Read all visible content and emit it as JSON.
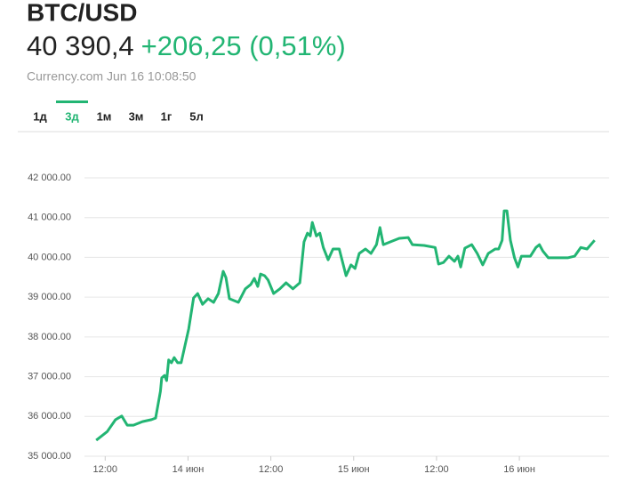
{
  "header": {
    "pair": "BTC/USD",
    "price": "40 390,4",
    "change": "+206,25 (0,51%)",
    "source": "Currency.com Jun 16 10:08:50",
    "tabs": [
      "1д",
      "3д",
      "1м",
      "3м",
      "1г",
      "5л"
    ],
    "active_tab": 1
  },
  "chart_data": {
    "type": "line",
    "color": "#22b573",
    "grid": true,
    "x": [
      10.7,
      12.3,
      13.5,
      14.4,
      15.2,
      16.1,
      17.4,
      18.7,
      19.3,
      20.0,
      20.2,
      20.6,
      20.9,
      21.2,
      21.6,
      22.0,
      22.5,
      23.0,
      24.1,
      24.8,
      25.4,
      26.1,
      26.9,
      27.7,
      28.4,
      29.1,
      29.5,
      30.0,
      31.3,
      32.3,
      33.1,
      33.6,
      34.1,
      34.5,
      35.1,
      35.6,
      36.4,
      37.3,
      38.2,
      39.2,
      40.2,
      40.8,
      41.3,
      41.7,
      42.0,
      42.6,
      43.1,
      43.6,
      44.3,
      45.0,
      45.9,
      46.9,
      47.6,
      48.2,
      48.8,
      49.7,
      50.5,
      51.3,
      51.8,
      52.3,
      53.3,
      54.6,
      55.9,
      56.5,
      58.2,
      59.8,
      60.3,
      61.0,
      61.8,
      62.6,
      63.1,
      63.5,
      64.1,
      65.1,
      65.9,
      66.7,
      67.5,
      68.5,
      69.0,
      69.5,
      69.8,
      70.2,
      70.7,
      71.3,
      71.8,
      72.3,
      73.6,
      74.4,
      74.9,
      75.4,
      76.2,
      79.0,
      80.0,
      80.9,
      81.8,
      82.9
    ],
    "series": [
      {
        "values": [
          35400,
          35620,
          35920,
          36010,
          35780,
          35780,
          35870,
          35920,
          35960,
          36630,
          36970,
          37030,
          36900,
          37420,
          37350,
          37480,
          37350,
          37350,
          38200,
          38980,
          39090,
          38820,
          38960,
          38870,
          39090,
          39650,
          39490,
          38960,
          38870,
          39210,
          39320,
          39470,
          39270,
          39580,
          39540,
          39430,
          39090,
          39210,
          39360,
          39210,
          39360,
          40390,
          40610,
          40540,
          40880,
          40540,
          40610,
          40250,
          39940,
          40210,
          40210,
          39540,
          39810,
          39720,
          40100,
          40210,
          40100,
          40320,
          40750,
          40320,
          40390,
          40480,
          40500,
          40320,
          40300,
          40250,
          39830,
          39870,
          40030,
          39900,
          40030,
          39760,
          40230,
          40320,
          40100,
          39810,
          40100,
          40210,
          40210,
          40430,
          41170,
          41170,
          40430,
          39990,
          39760,
          40030,
          40030,
          40250,
          40320,
          40160,
          39990,
          39990,
          40030,
          40250,
          40210,
          40430
        ]
      }
    ],
    "xlim": [
      9,
      85
    ],
    "xticks": [
      {
        "value": 12,
        "label": "12:00"
      },
      {
        "value": 24,
        "label": "14 июн"
      },
      {
        "value": 36,
        "label": "12:00"
      },
      {
        "value": 48,
        "label": "15 июн"
      },
      {
        "value": 60,
        "label": "12:00"
      },
      {
        "value": 72,
        "label": "16 июн"
      }
    ],
    "ylim": [
      35000,
      42000
    ],
    "yticks": [
      {
        "value": 35000,
        "label": "35 000.00"
      },
      {
        "value": 36000,
        "label": "36 000.00"
      },
      {
        "value": 37000,
        "label": "37 000.00"
      },
      {
        "value": 38000,
        "label": "38 000.00"
      },
      {
        "value": 39000,
        "label": "39 000.00"
      },
      {
        "value": 40000,
        "label": "40 000.00"
      },
      {
        "value": 41000,
        "label": "41 000.00"
      },
      {
        "value": 42000,
        "label": "42 000.00"
      }
    ]
  }
}
